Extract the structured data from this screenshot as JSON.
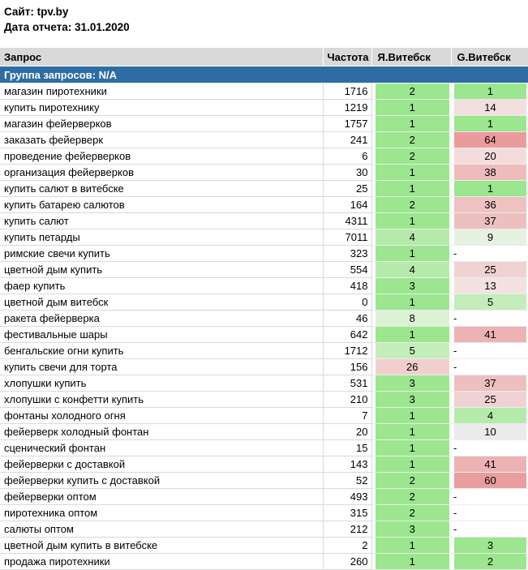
{
  "meta": {
    "site_label": "Сайт: tpv.by",
    "date_label": "Дата отчета: 31.01.2020"
  },
  "table": {
    "columns": [
      "Запрос",
      "Частота",
      "Я.Витебск",
      "G.Витебск"
    ],
    "group_label": "Группа запросов: N/A",
    "colors": {
      "header_bg": "#d9d9d9",
      "group_row_bg": "#2e6da4",
      "grid_border": "#d9d9d9",
      "position_good": "#9be68f",
      "position_mid": "#ebebeb",
      "position_bad": "#eb9b9b"
    },
    "no_position_symbol": "-",
    "rows": [
      {
        "query": "магазин пиротехники",
        "freq": "1716",
        "ya": "2",
        "ya_bg": "#9be68f",
        "g": "1",
        "g_bg": "#9be68f"
      },
      {
        "query": "купить пиротехнику",
        "freq": "1219",
        "ya": "1",
        "ya_bg": "#9be68f",
        "g": "14",
        "g_bg": "#f3dfdf"
      },
      {
        "query": "магазин фейерверков",
        "freq": "1757",
        "ya": "1",
        "ya_bg": "#9be68f",
        "g": "1",
        "g_bg": "#9be68f"
      },
      {
        "query": "заказать фейерверк",
        "freq": "241",
        "ya": "2",
        "ya_bg": "#9be68f",
        "g": "64",
        "g_bg": "#eb9b9b"
      },
      {
        "query": "проведение фейерверков",
        "freq": "6",
        "ya": "2",
        "ya_bg": "#9be68f",
        "g": "20",
        "g_bg": "#f5dcdc"
      },
      {
        "query": "организация фейерверков",
        "freq": "30",
        "ya": "1",
        "ya_bg": "#9be68f",
        "g": "38",
        "g_bg": "#efbcbc"
      },
      {
        "query": "купить салют в витебске",
        "freq": "25",
        "ya": "1",
        "ya_bg": "#9be68f",
        "g": "1",
        "g_bg": "#9be68f"
      },
      {
        "query": "купить батарею салютов",
        "freq": "164",
        "ya": "2",
        "ya_bg": "#9be68f",
        "g": "36",
        "g_bg": "#efc1c1"
      },
      {
        "query": "купить салют",
        "freq": "4311",
        "ya": "1",
        "ya_bg": "#9be68f",
        "g": "37",
        "g_bg": "#eebfbf"
      },
      {
        "query": "купить петарды",
        "freq": "7011",
        "ya": "4",
        "ya_bg": "#b5ebaa",
        "g": "9",
        "g_bg": "#e6f1e2"
      },
      {
        "query": "римские свечи купить",
        "freq": "323",
        "ya": "1",
        "ya_bg": "#9be68f",
        "g": "-",
        "g_bg": ""
      },
      {
        "query": "цветной дым купить",
        "freq": "554",
        "ya": "4",
        "ya_bg": "#b5ebaa",
        "g": "25",
        "g_bg": "#f1d2d2"
      },
      {
        "query": "фаер купить",
        "freq": "418",
        "ya": "3",
        "ya_bg": "#9be68f",
        "g": "13",
        "g_bg": "#f2e2e2"
      },
      {
        "query": "цветной дым витебск",
        "freq": "0",
        "ya": "1",
        "ya_bg": "#9be68f",
        "g": "5",
        "g_bg": "#c3edba"
      },
      {
        "query": "ракета фейерверка",
        "freq": "46",
        "ya": "8",
        "ya_bg": "#dbf2d4",
        "g": "-",
        "g_bg": ""
      },
      {
        "query": "фестивальные шары",
        "freq": "642",
        "ya": "1",
        "ya_bg": "#9be68f",
        "g": "41",
        "g_bg": "#edb3b3"
      },
      {
        "query": "бенгальские огни купить",
        "freq": "1712",
        "ya": "5",
        "ya_bg": "#c3edba",
        "g": "-",
        "g_bg": ""
      },
      {
        "query": "купить свечи для торта",
        "freq": "156",
        "ya": "26",
        "ya_bg": "#f2cfcf",
        "g": "-",
        "g_bg": ""
      },
      {
        "query": "хлопушки купить",
        "freq": "531",
        "ya": "3",
        "ya_bg": "#9be68f",
        "g": "37",
        "g_bg": "#eebfbf"
      },
      {
        "query": "хлопушки с конфетти купить",
        "freq": "210",
        "ya": "3",
        "ya_bg": "#9be68f",
        "g": "25",
        "g_bg": "#f1d2d2"
      },
      {
        "query": "фонтаны холодного огня",
        "freq": "7",
        "ya": "1",
        "ya_bg": "#9be68f",
        "g": "4",
        "g_bg": "#b5ebaa"
      },
      {
        "query": "фейерверк холодный фонтан",
        "freq": "20",
        "ya": "1",
        "ya_bg": "#9be68f",
        "g": "10",
        "g_bg": "#ebebeb"
      },
      {
        "query": "сценический фонтан",
        "freq": "15",
        "ya": "1",
        "ya_bg": "#9be68f",
        "g": "-",
        "g_bg": ""
      },
      {
        "query": "фейерверки с доставкой",
        "freq": "143",
        "ya": "1",
        "ya_bg": "#9be68f",
        "g": "41",
        "g_bg": "#edb3b3"
      },
      {
        "query": "фейерверки купить с доставкой",
        "freq": "52",
        "ya": "2",
        "ya_bg": "#9be68f",
        "g": "60",
        "g_bg": "#e99e9e"
      },
      {
        "query": "фейерверки оптом",
        "freq": "493",
        "ya": "2",
        "ya_bg": "#9be68f",
        "g": "-",
        "g_bg": ""
      },
      {
        "query": "пиротехника оптом",
        "freq": "315",
        "ya": "2",
        "ya_bg": "#9be68f",
        "g": "-",
        "g_bg": ""
      },
      {
        "query": "салюты оптом",
        "freq": "212",
        "ya": "3",
        "ya_bg": "#9be68f",
        "g": "-",
        "g_bg": ""
      },
      {
        "query": "цветной дым купить в витебске",
        "freq": "2",
        "ya": "1",
        "ya_bg": "#9be68f",
        "g": "3",
        "g_bg": "#9be68f"
      },
      {
        "query": "продажа пиротехники",
        "freq": "260",
        "ya": "1",
        "ya_bg": "#9be68f",
        "g": "2",
        "g_bg": "#9be68f"
      }
    ]
  }
}
